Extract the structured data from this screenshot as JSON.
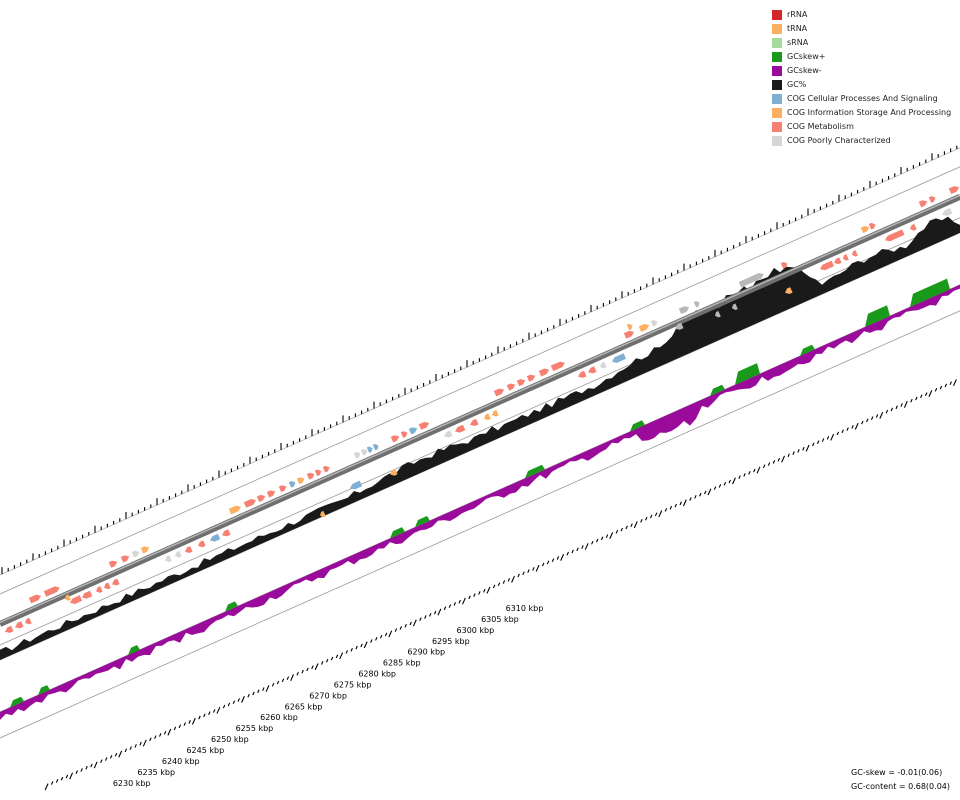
{
  "legend": {
    "items": [
      {
        "label": "rRNA",
        "color": "#d62728"
      },
      {
        "label": "tRNA",
        "color": "#fdae61"
      },
      {
        "label": "sRNA",
        "color": "#a6dba0"
      },
      {
        "label": "GCskew+",
        "color": "#1a9a1a"
      },
      {
        "label": "GCskew-",
        "color": "#9b0b9b"
      },
      {
        "label": "GC%",
        "color": "#1a1a1a"
      },
      {
        "label": "COG Cellular Processes And Signaling",
        "color": "#7fb0d4"
      },
      {
        "label": "COG Information Storage And Processing",
        "color": "#fdae61"
      },
      {
        "label": "COG Metabolism",
        "color": "#f68173"
      },
      {
        "label": "COG Poorly Characterized",
        "color": "#d6d6d6"
      }
    ]
  },
  "axis": {
    "unit": "kbp",
    "tick_labels": [
      "6230 kbp",
      "6235 kbp",
      "6240 kbp",
      "6245 kbp",
      "6250 kbp",
      "6255 kbp",
      "6260 kbp",
      "6265 kbp",
      "6270 kbp",
      "6275 kbp",
      "6280 kbp",
      "6285 kbp",
      "6290 kbp",
      "6295 kbp",
      "6300 kbp",
      "6305 kbp",
      "6310 kbp"
    ]
  },
  "stats": {
    "gc_skew": "GC-skew = -0.01(0.06)",
    "gc_content": "GC-content = 0.68(0.04)"
  }
}
